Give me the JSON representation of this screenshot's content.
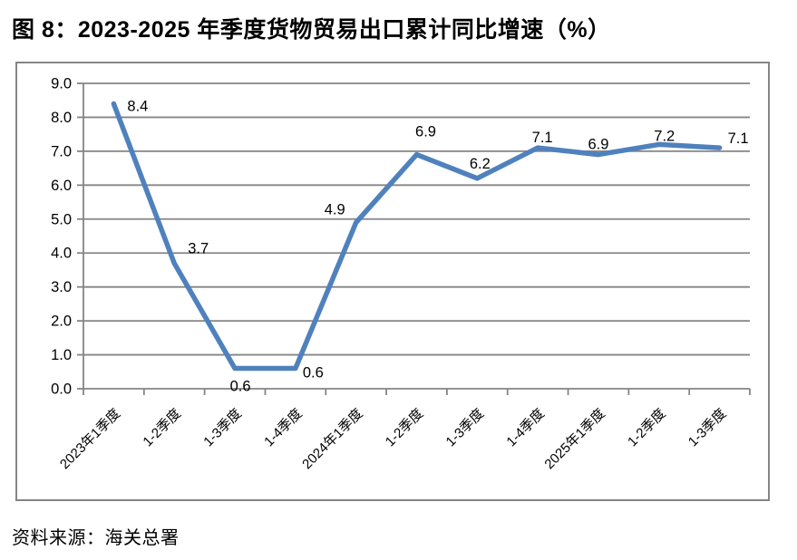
{
  "page": {
    "title": "图 8：2023-2025 年季度货物贸易出口累计同比增速（%）",
    "source": "资料来源：海关总署"
  },
  "chart_data": {
    "type": "line",
    "title": "2023-2025 年季度货物贸易出口累计同比增速（%）",
    "categories": [
      "2023年1季度",
      "1-2季度",
      "1-3季度",
      "1-4季度",
      "2024年1季度",
      "1-2季度",
      "1-3季度",
      "1-4季度",
      "2025年1季度",
      "1-2季度",
      "1-3季度"
    ],
    "values": [
      8.4,
      3.7,
      0.6,
      0.6,
      4.9,
      6.9,
      6.2,
      7.1,
      6.9,
      7.2,
      7.1
    ],
    "xlabel": "",
    "ylabel": "",
    "ylim": [
      0,
      9
    ],
    "ytick_step": 1,
    "ytick_decimals": 1,
    "grid": true,
    "legend": "none",
    "data_labels": true,
    "line_color": "#4F81BD",
    "grid_color": "#858585",
    "text_color": "#000000"
  }
}
